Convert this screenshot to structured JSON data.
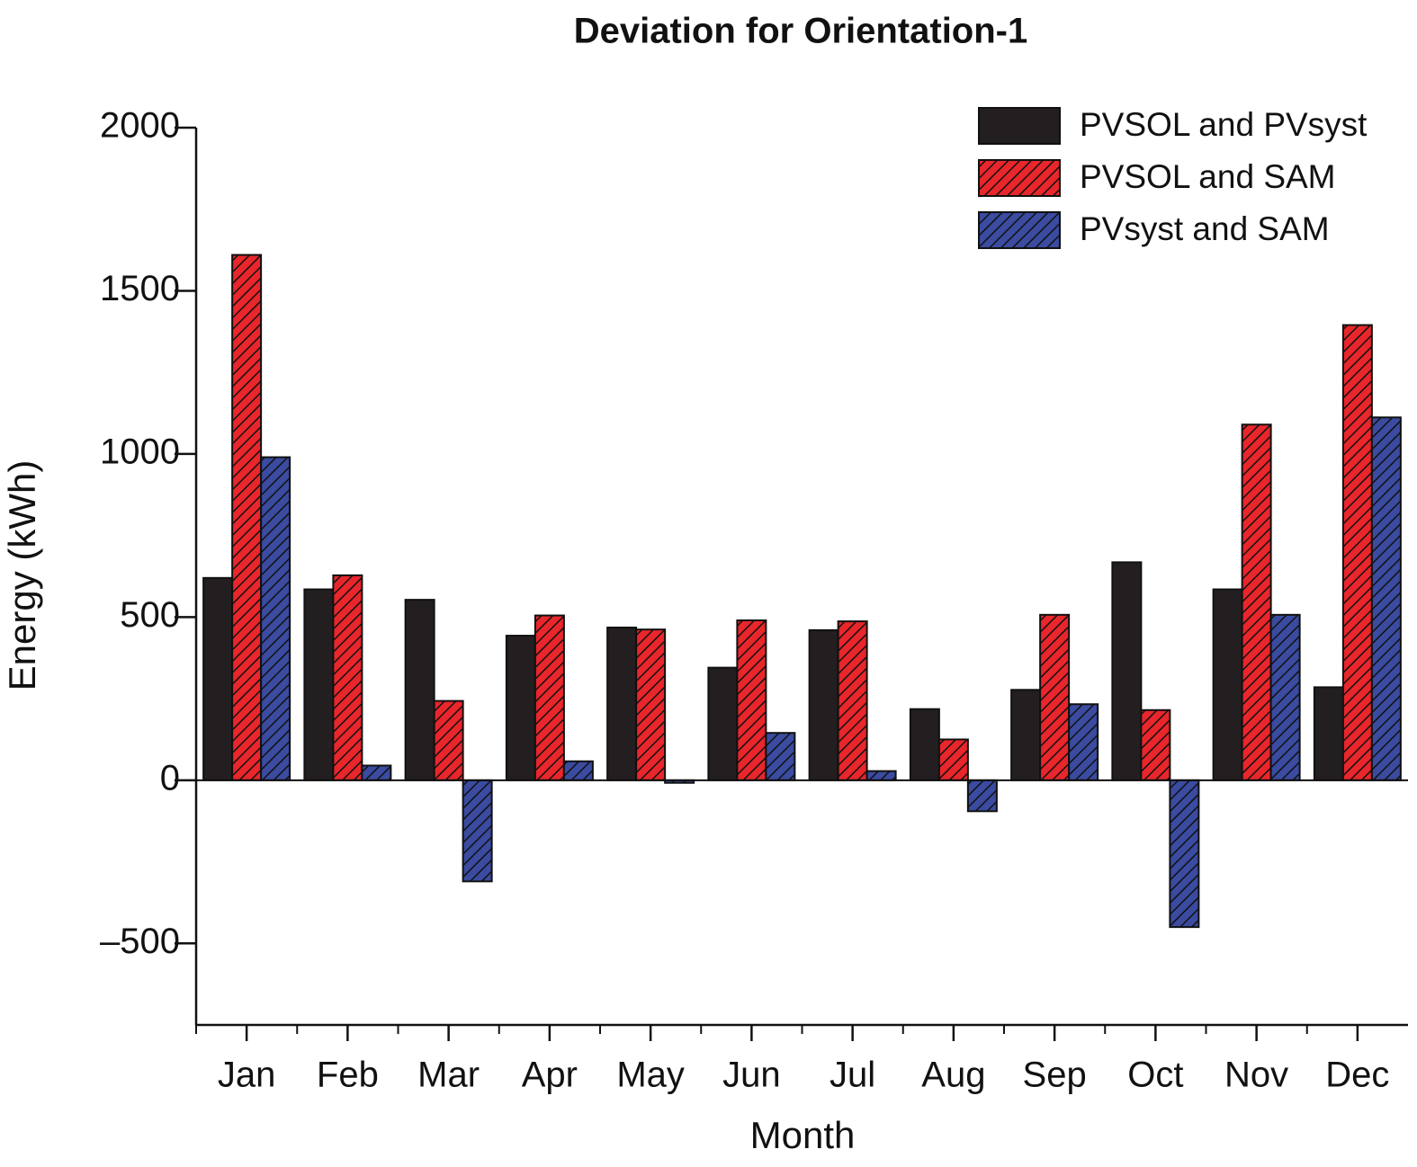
{
  "chart_data": {
    "type": "bar",
    "title": "Deviation for Orientation-1",
    "x_label": "Month",
    "y_label": "Energy (kWh)",
    "categories": [
      "Jan",
      "Feb",
      "Mar",
      "Apr",
      "May",
      "Jun",
      "Jul",
      "Aug",
      "Sep",
      "Oct",
      "Nov",
      "Dec"
    ],
    "series": [
      {
        "name": "PVSOL and PVsyst",
        "color": "#231f20",
        "hatch": false,
        "values": [
          620,
          585,
          553,
          443,
          468,
          345,
          460,
          218,
          277,
          668,
          585,
          285
        ]
      },
      {
        "name": "PVSOL and SAM",
        "color": "#e8262b",
        "hatch": true,
        "values": [
          1610,
          628,
          243,
          505,
          462,
          490,
          487,
          125,
          507,
          215,
          1090,
          1395
        ]
      },
      {
        "name": "PVsyst and SAM",
        "color": "#3a4ba0",
        "hatch": true,
        "values": [
          990,
          45,
          -310,
          58,
          -8,
          145,
          28,
          -95,
          233,
          -450,
          507,
          1112
        ]
      }
    ],
    "ylim": [
      -750,
      2000
    ],
    "yticks": [
      {
        "value": -500,
        "label": "–500"
      },
      0,
      500,
      1000,
      1500,
      2000
    ],
    "legend": "top-right"
  }
}
